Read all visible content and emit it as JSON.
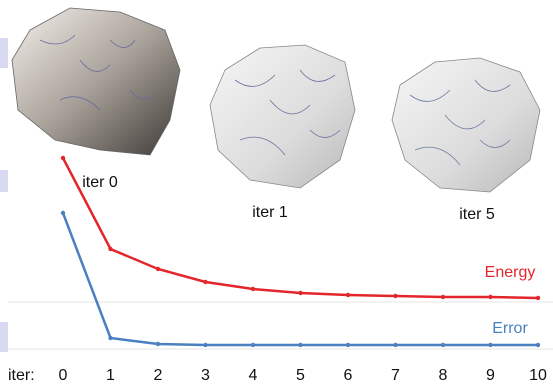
{
  "chart_data": {
    "type": "line",
    "xlabel": "iter:",
    "x": [
      0,
      1,
      2,
      3,
      4,
      5,
      6,
      7,
      8,
      9,
      10
    ],
    "xlim": [
      0,
      10
    ],
    "xticks": [
      0,
      1,
      2,
      3,
      4,
      5,
      6,
      7,
      8,
      9,
      10
    ],
    "ylim": [
      0,
      100
    ],
    "series": [
      {
        "name": "Energy",
        "color": "#e3262b",
        "values": [
          96,
          50.5,
          40.5,
          34,
          30.5,
          28.5,
          27.5,
          27,
          26.5,
          26.5,
          26
        ]
      },
      {
        "name": "Error",
        "color": "#4a7fc0",
        "values": [
          68.5,
          6,
          3,
          2.5,
          2.5,
          2.5,
          2.5,
          2.5,
          2.5,
          2.5,
          2.5
        ]
      }
    ]
  },
  "images": [
    {
      "label": "iter 0"
    },
    {
      "label": "iter 1"
    },
    {
      "label": "iter 5"
    }
  ]
}
